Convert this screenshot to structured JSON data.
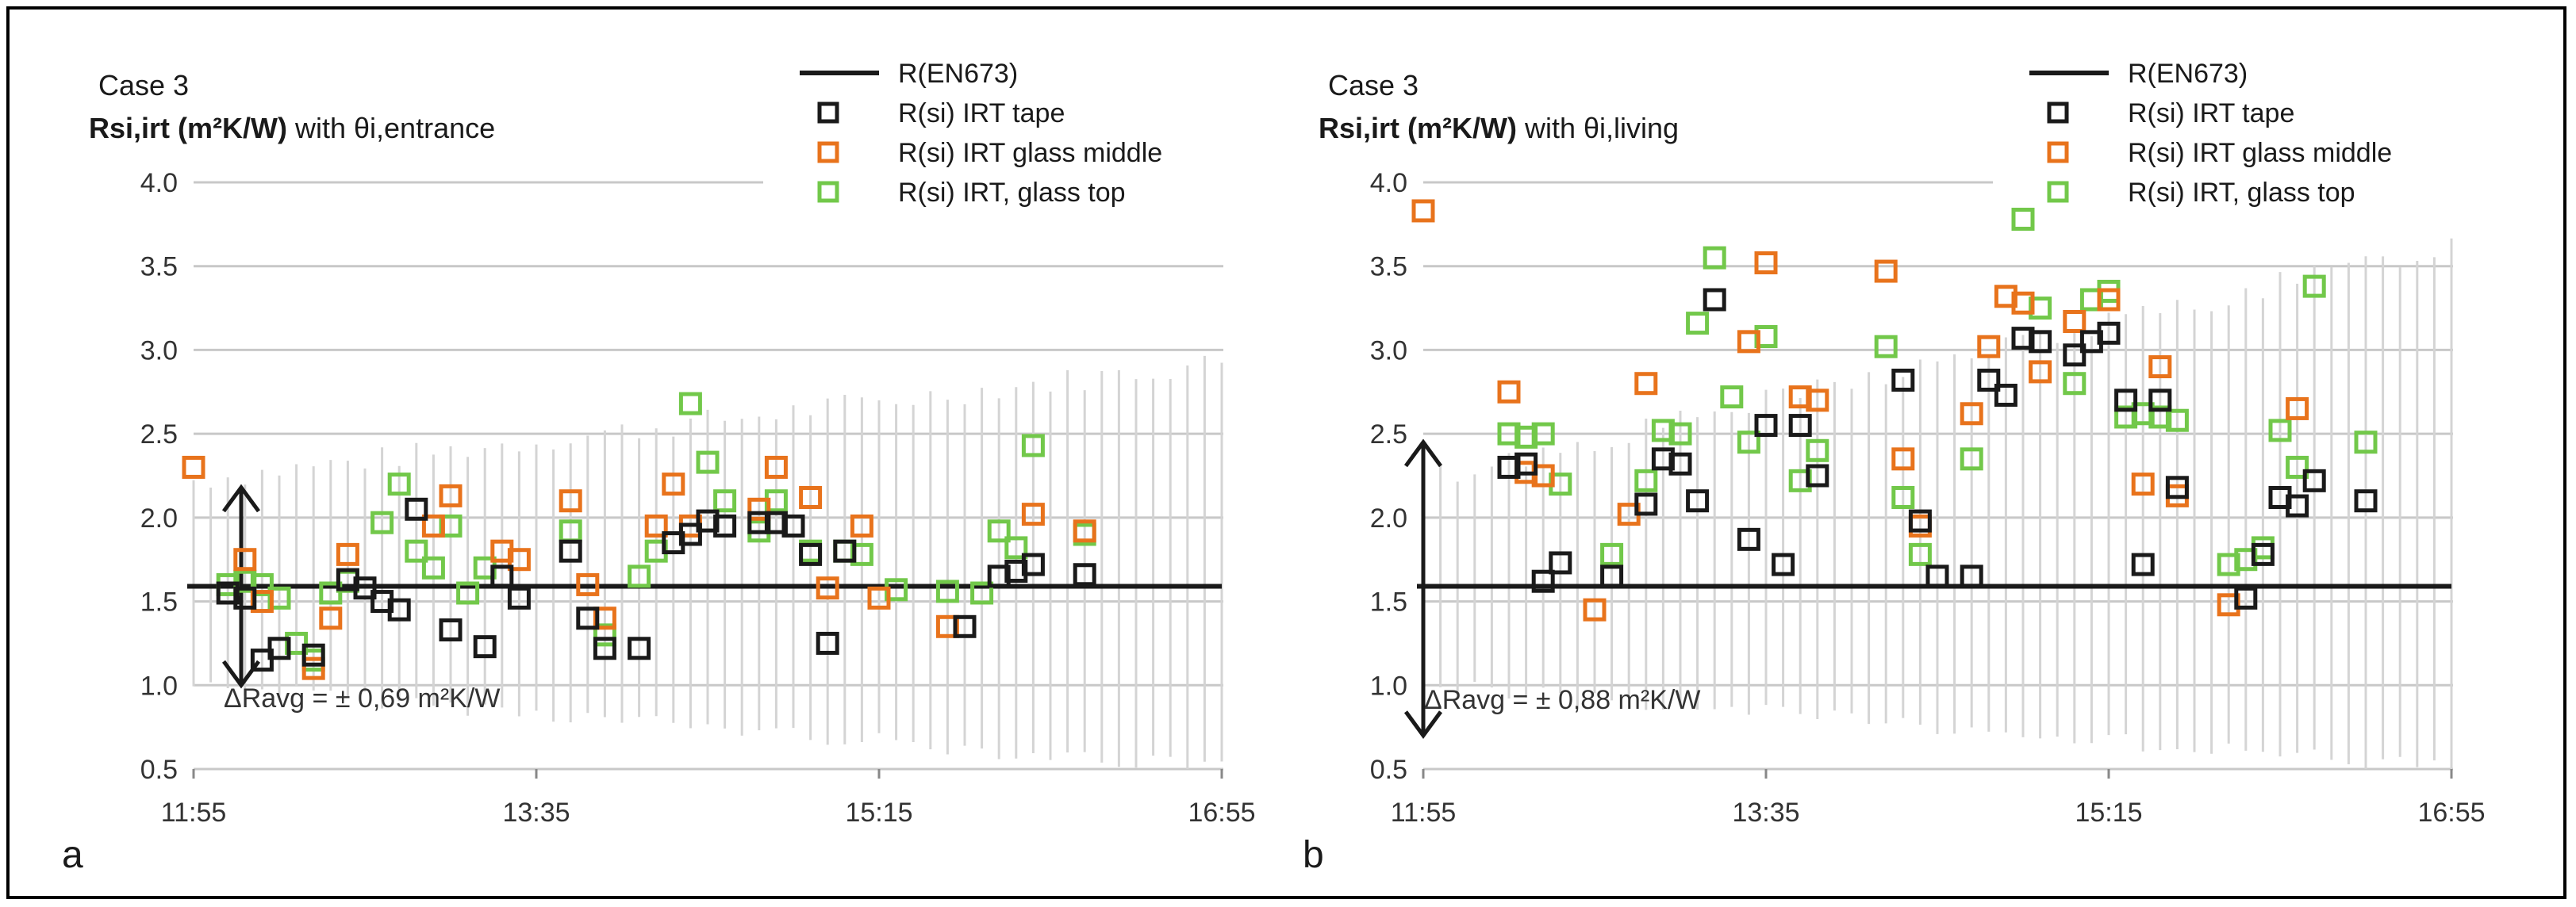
{
  "chart_data": [
    {
      "type": "scatter",
      "panel_label": "a",
      "case_label": "Case 3",
      "title_bold": "Rsi,irt (m²K/W)",
      "title_rest": " with θi,entrance",
      "x_ticks": [
        "11:55",
        "13:35",
        "15:15",
        "16:55"
      ],
      "x_range": [
        "11:55",
        "16:55"
      ],
      "ylim": [
        0.5,
        4.0
      ],
      "y_ticks": [
        "0.5",
        "1.0",
        "1.5",
        "2.0",
        "2.5",
        "3.0",
        "3.5",
        "4.0"
      ],
      "grid": true,
      "legend_position": "top-right",
      "en673_value": 1.59,
      "delta_annotation": "ΔRavg = ± 0,69 m²K/W",
      "arrow_range": [
        1.0,
        2.18
      ],
      "series": [
        {
          "name": "R(EN673)",
          "kind": "line",
          "color": "#1a1a1a"
        },
        {
          "name": "R(si) IRT tape",
          "kind": "marker",
          "color": "#1a1a1a",
          "points": [
            [
              "12:05",
              1.55
            ],
            [
              "12:10",
              1.52
            ],
            [
              "12:15",
              1.15
            ],
            [
              "12:20",
              1.22
            ],
            [
              "12:30",
              1.18
            ],
            [
              "12:40",
              1.63
            ],
            [
              "12:45",
              1.58
            ],
            [
              "12:50",
              1.5
            ],
            [
              "12:55",
              1.45
            ],
            [
              "13:00",
              2.05
            ],
            [
              "13:10",
              1.33
            ],
            [
              "13:20",
              1.23
            ],
            [
              "13:25",
              1.65
            ],
            [
              "13:30",
              1.52
            ],
            [
              "13:45",
              1.8
            ],
            [
              "13:50",
              1.4
            ],
            [
              "13:55",
              1.22
            ],
            [
              "14:05",
              1.22
            ],
            [
              "14:15",
              1.85
            ],
            [
              "14:20",
              1.9
            ],
            [
              "14:25",
              1.98
            ],
            [
              "14:30",
              1.95
            ],
            [
              "14:40",
              1.97
            ],
            [
              "14:45",
              1.97
            ],
            [
              "14:50",
              1.95
            ],
            [
              "14:55",
              1.78
            ],
            [
              "15:00",
              1.25
            ],
            [
              "15:05",
              1.8
            ],
            [
              "15:40",
              1.35
            ],
            [
              "15:50",
              1.65
            ],
            [
              "15:55",
              1.68
            ],
            [
              "16:00",
              1.72
            ],
            [
              "16:15",
              1.66
            ]
          ]
        },
        {
          "name": "R(si) IRT glass middle",
          "kind": "marker",
          "color": "#e8731c",
          "points": [
            [
              "11:55",
              2.3
            ],
            [
              "12:10",
              1.75
            ],
            [
              "12:15",
              1.5
            ],
            [
              "12:30",
              1.1
            ],
            [
              "12:35",
              1.4
            ],
            [
              "12:40",
              1.78
            ],
            [
              "13:05",
              1.95
            ],
            [
              "13:10",
              2.13
            ],
            [
              "13:25",
              1.8
            ],
            [
              "13:30",
              1.75
            ],
            [
              "13:45",
              2.1
            ],
            [
              "13:50",
              1.6
            ],
            [
              "13:55",
              1.4
            ],
            [
              "14:10",
              1.95
            ],
            [
              "14:15",
              2.2
            ],
            [
              "14:20",
              1.95
            ],
            [
              "14:40",
              2.05
            ],
            [
              "14:45",
              2.3
            ],
            [
              "14:55",
              2.12
            ],
            [
              "15:00",
              1.58
            ],
            [
              "15:10",
              1.95
            ],
            [
              "15:15",
              1.52
            ],
            [
              "15:35",
              1.35
            ],
            [
              "16:00",
              2.02
            ],
            [
              "16:15",
              1.92
            ]
          ]
        },
        {
          "name": "R(si) IRT, glass top",
          "kind": "marker",
          "color": "#72c84a",
          "points": [
            [
              "12:05",
              1.6
            ],
            [
              "12:10",
              1.62
            ],
            [
              "12:15",
              1.6
            ],
            [
              "12:20",
              1.52
            ],
            [
              "12:25",
              1.25
            ],
            [
              "12:30",
              1.15
            ],
            [
              "12:35",
              1.55
            ],
            [
              "12:40",
              1.62
            ],
            [
              "12:50",
              1.97
            ],
            [
              "12:55",
              2.2
            ],
            [
              "13:00",
              1.8
            ],
            [
              "13:05",
              1.7
            ],
            [
              "13:10",
              1.95
            ],
            [
              "13:15",
              1.55
            ],
            [
              "13:20",
              1.7
            ],
            [
              "13:45",
              1.92
            ],
            [
              "13:55",
              1.3
            ],
            [
              "14:05",
              1.65
            ],
            [
              "14:10",
              1.8
            ],
            [
              "14:20",
              2.68
            ],
            [
              "14:25",
              2.33
            ],
            [
              "14:30",
              2.1
            ],
            [
              "14:40",
              1.92
            ],
            [
              "14:45",
              2.1
            ],
            [
              "14:55",
              1.8
            ],
            [
              "15:05",
              1.8
            ],
            [
              "15:10",
              1.78
            ],
            [
              "15:20",
              1.57
            ],
            [
              "15:35",
              1.56
            ],
            [
              "15:45",
              1.55
            ],
            [
              "15:50",
              1.92
            ],
            [
              "15:55",
              1.82
            ],
            [
              "16:00",
              2.43
            ],
            [
              "16:15",
              1.9
            ]
          ]
        }
      ]
    },
    {
      "type": "scatter",
      "panel_label": "b",
      "case_label": "Case 3",
      "title_bold": "Rsi,irt (m²K/W)",
      "title_rest": " with θi,living",
      "x_ticks": [
        "11:55",
        "13:35",
        "15:15",
        "16:55"
      ],
      "x_range": [
        "11:55",
        "16:55"
      ],
      "ylim": [
        0.5,
        4.0
      ],
      "y_ticks": [
        "0.5",
        "1.0",
        "1.5",
        "2.0",
        "2.5",
        "3.0",
        "3.5",
        "4.0"
      ],
      "grid": true,
      "legend_position": "top-right",
      "en673_value": 1.59,
      "delta_annotation": "ΔRavg = ± 0,88 m²K/W",
      "arrow_range": [
        0.7,
        2.45
      ],
      "series": [
        {
          "name": "R(EN673)",
          "kind": "line",
          "color": "#1a1a1a"
        },
        {
          "name": "R(si) IRT tape",
          "kind": "marker",
          "color": "#1a1a1a",
          "points": [
            [
              "12:20",
              2.3
            ],
            [
              "12:25",
              2.32
            ],
            [
              "12:30",
              1.62
            ],
            [
              "12:35",
              1.73
            ],
            [
              "12:50",
              1.65
            ],
            [
              "13:00",
              2.08
            ],
            [
              "13:05",
              2.35
            ],
            [
              "13:10",
              2.32
            ],
            [
              "13:15",
              2.1
            ],
            [
              "13:20",
              3.3
            ],
            [
              "13:30",
              1.87
            ],
            [
              "13:35",
              2.55
            ],
            [
              "13:40",
              1.72
            ],
            [
              "13:45",
              2.55
            ],
            [
              "13:50",
              2.25
            ],
            [
              "14:15",
              2.82
            ],
            [
              "14:20",
              1.98
            ],
            [
              "14:25",
              1.65
            ],
            [
              "14:35",
              1.65
            ],
            [
              "14:40",
              2.82
            ],
            [
              "14:45",
              2.73
            ],
            [
              "14:50",
              3.07
            ],
            [
              "14:55",
              3.05
            ],
            [
              "15:05",
              2.97
            ],
            [
              "15:10",
              3.05
            ],
            [
              "15:15",
              3.1
            ],
            [
              "15:20",
              2.7
            ],
            [
              "15:25",
              1.72
            ],
            [
              "15:30",
              2.7
            ],
            [
              "15:35",
              2.18
            ],
            [
              "15:55",
              1.52
            ],
            [
              "16:00",
              1.78
            ],
            [
              "16:05",
              2.12
            ],
            [
              "16:10",
              2.07
            ],
            [
              "16:15",
              2.22
            ],
            [
              "16:30",
              2.1
            ]
          ]
        },
        {
          "name": "R(si) IRT glass middle",
          "kind": "marker",
          "color": "#e8731c",
          "points": [
            [
              "11:55",
              3.83
            ],
            [
              "12:20",
              2.75
            ],
            [
              "12:25",
              2.27
            ],
            [
              "12:30",
              2.25
            ],
            [
              "12:45",
              1.45
            ],
            [
              "12:55",
              2.02
            ],
            [
              "13:00",
              2.8
            ],
            [
              "13:30",
              3.05
            ],
            [
              "13:35",
              3.52
            ],
            [
              "13:45",
              2.72
            ],
            [
              "13:50",
              2.7
            ],
            [
              "14:10",
              3.47
            ],
            [
              "14:15",
              2.35
            ],
            [
              "14:20",
              1.95
            ],
            [
              "14:35",
              2.62
            ],
            [
              "14:40",
              3.02
            ],
            [
              "14:45",
              3.32
            ],
            [
              "14:50",
              3.28
            ],
            [
              "14:55",
              2.87
            ],
            [
              "15:05",
              3.17
            ],
            [
              "15:15",
              3.3
            ],
            [
              "15:25",
              2.2
            ],
            [
              "15:30",
              2.9
            ],
            [
              "15:35",
              2.13
            ],
            [
              "15:50",
              1.48
            ],
            [
              "16:10",
              2.65
            ]
          ]
        },
        {
          "name": "R(si) IRT, glass top",
          "kind": "marker",
          "color": "#72c84a",
          "points": [
            [
              "12:20",
              2.5
            ],
            [
              "12:25",
              2.48
            ],
            [
              "12:30",
              2.5
            ],
            [
              "12:35",
              2.2
            ],
            [
              "12:50",
              1.78
            ],
            [
              "13:00",
              2.22
            ],
            [
              "13:05",
              2.52
            ],
            [
              "13:10",
              2.5
            ],
            [
              "13:15",
              3.16
            ],
            [
              "13:20",
              3.55
            ],
            [
              "13:25",
              2.72
            ],
            [
              "13:30",
              2.45
            ],
            [
              "13:35",
              3.08
            ],
            [
              "13:45",
              2.22
            ],
            [
              "13:50",
              2.4
            ],
            [
              "14:10",
              3.02
            ],
            [
              "14:15",
              2.12
            ],
            [
              "14:20",
              1.78
            ],
            [
              "14:35",
              2.35
            ],
            [
              "14:50",
              3.78
            ],
            [
              "14:55",
              3.25
            ],
            [
              "15:05",
              2.8
            ],
            [
              "15:10",
              3.3
            ],
            [
              "15:15",
              3.35
            ],
            [
              "15:20",
              2.6
            ],
            [
              "15:25",
              2.62
            ],
            [
              "15:30",
              2.6
            ],
            [
              "15:35",
              2.58
            ],
            [
              "15:50",
              1.72
            ],
            [
              "15:55",
              1.75
            ],
            [
              "16:00",
              1.82
            ],
            [
              "16:05",
              2.52
            ],
            [
              "16:10",
              2.3
            ],
            [
              "16:15",
              3.38
            ],
            [
              "16:30",
              2.45
            ]
          ]
        }
      ]
    }
  ]
}
